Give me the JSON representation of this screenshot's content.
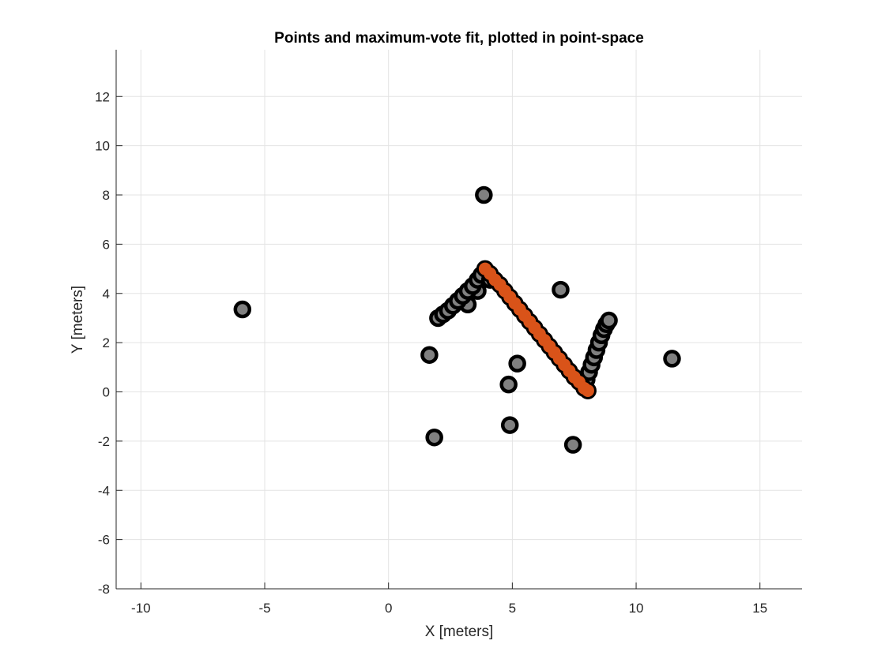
{
  "chart_data": {
    "type": "scatter",
    "title": "Points and maximum-vote fit, plotted in point-space",
    "xlabel": "X [meters]",
    "ylabel": "Y [meters]",
    "xlim": [
      -11,
      16.7
    ],
    "ylim": [
      -8,
      13.9
    ],
    "xticks": [
      -10,
      -5,
      0,
      5,
      10,
      15
    ],
    "yticks": [
      -8,
      -6,
      -4,
      -2,
      0,
      2,
      4,
      6,
      8,
      10,
      12
    ],
    "xtick_labels": [
      "-10",
      "-5",
      "0",
      "5",
      "10",
      "15"
    ],
    "ytick_labels": [
      "-8",
      "-6",
      "-4",
      "-2",
      "0",
      "2",
      "4",
      "6",
      "8",
      "10",
      "12"
    ],
    "grid": true,
    "colors": {
      "points_fill": "#808080",
      "points_edge": "#000000",
      "fit": "#d95319"
    },
    "series": [
      {
        "role": "outliers",
        "points": [
          [
            -5.9,
            3.35
          ],
          [
            3.85,
            8.0
          ],
          [
            6.95,
            4.15
          ],
          [
            11.45,
            1.35
          ],
          [
            1.65,
            1.5
          ],
          [
            5.2,
            1.15
          ],
          [
            4.85,
            0.3
          ],
          [
            4.9,
            -1.35
          ],
          [
            1.85,
            -1.85
          ],
          [
            7.45,
            -2.15
          ],
          [
            3.2,
            3.55
          ],
          [
            3.6,
            4.1
          ]
        ]
      },
      {
        "role": "left-segment",
        "points": [
          [
            2.0,
            3.0
          ],
          [
            2.2,
            3.15
          ],
          [
            2.4,
            3.3
          ],
          [
            2.6,
            3.5
          ],
          [
            2.8,
            3.7
          ],
          [
            3.0,
            3.9
          ],
          [
            3.2,
            4.1
          ],
          [
            3.4,
            4.3
          ],
          [
            3.6,
            4.55
          ],
          [
            3.75,
            4.75
          ],
          [
            4.1,
            4.55
          ]
        ]
      },
      {
        "role": "right-segment",
        "points": [
          [
            8.0,
            0.5
          ],
          [
            8.1,
            0.8
          ],
          [
            8.2,
            1.1
          ],
          [
            8.3,
            1.4
          ],
          [
            8.4,
            1.7
          ],
          [
            8.5,
            2.0
          ],
          [
            8.6,
            2.3
          ],
          [
            8.7,
            2.55
          ],
          [
            8.8,
            2.75
          ],
          [
            8.9,
            2.9
          ]
        ]
      },
      {
        "role": "maximum-vote-fit",
        "points": [
          [
            3.9,
            5.0
          ],
          [
            4.1,
            4.8
          ],
          [
            4.3,
            4.55
          ],
          [
            4.5,
            4.35
          ],
          [
            4.7,
            4.1
          ],
          [
            4.9,
            3.85
          ],
          [
            5.1,
            3.6
          ],
          [
            5.3,
            3.35
          ],
          [
            5.5,
            3.1
          ],
          [
            5.7,
            2.85
          ],
          [
            5.9,
            2.6
          ],
          [
            6.1,
            2.35
          ],
          [
            6.3,
            2.1
          ],
          [
            6.5,
            1.85
          ],
          [
            6.7,
            1.6
          ],
          [
            6.9,
            1.35
          ],
          [
            7.1,
            1.1
          ],
          [
            7.3,
            0.85
          ],
          [
            7.5,
            0.6
          ],
          [
            7.7,
            0.4
          ],
          [
            7.9,
            0.15
          ],
          [
            8.05,
            0.05
          ]
        ]
      }
    ]
  }
}
